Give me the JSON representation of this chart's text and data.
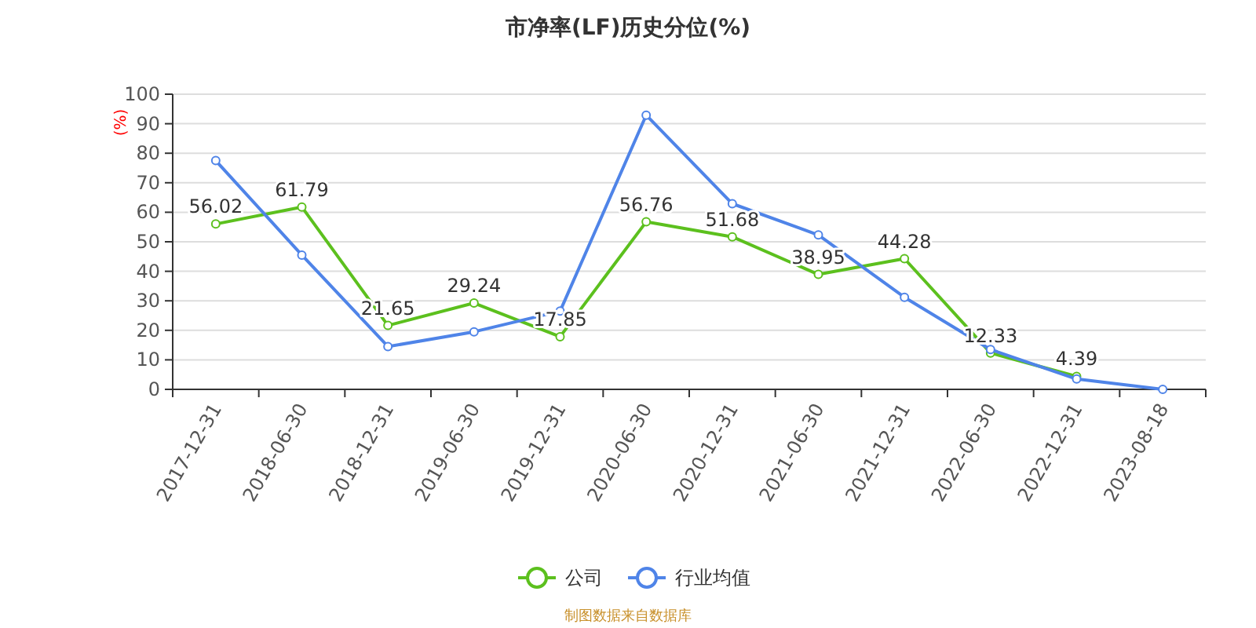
{
  "chart_data": {
    "type": "line",
    "title": "市净率(LF)历史分位(%)",
    "ylabel": "(%)",
    "categories": [
      "2017-12-31",
      "2018-06-30",
      "2018-12-31",
      "2019-06-30",
      "2019-12-31",
      "2020-06-30",
      "2020-12-31",
      "2021-06-30",
      "2021-12-31",
      "2022-06-30",
      "2022-12-31",
      "2023-08-18"
    ],
    "series": [
      {
        "name": "公司",
        "color": "#5cc01e",
        "values": [
          56.02,
          61.79,
          21.65,
          29.24,
          17.85,
          56.76,
          51.68,
          38.95,
          44.28,
          12.33,
          4.39,
          null
        ],
        "data_labels": true
      },
      {
        "name": "行业均值",
        "color": "#4f84e8",
        "values": [
          77.5,
          45.5,
          14.5,
          19.5,
          26.5,
          92.9,
          62.9,
          52.3,
          31.2,
          13.5,
          3.5,
          0
        ]
      }
    ],
    "ylim": [
      0,
      100
    ],
    "yticks": [
      0,
      10,
      20,
      30,
      40,
      50,
      60,
      70,
      80,
      90,
      100
    ],
    "grid": "y",
    "legend": "bottom",
    "marker": "circle",
    "annotations": [
      "制图数据来自数据库"
    ]
  }
}
